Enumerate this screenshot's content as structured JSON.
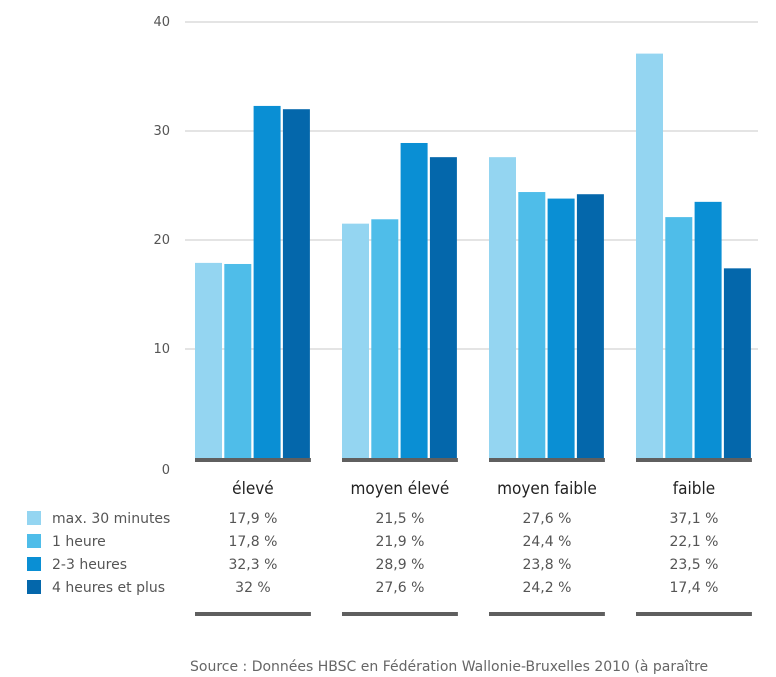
{
  "chart_data": {
    "type": "bar",
    "categories": [
      "élevé",
      "moyen élevé",
      "moyen faible",
      "faible"
    ],
    "series": [
      {
        "name": "max. 30 minutes",
        "values": [
          17.9,
          21.5,
          27.6,
          37.1
        ],
        "labels": [
          "17,9 %",
          "21,5 %",
          "27,6 %",
          "37,1 %"
        ],
        "color": "#94d5f1"
      },
      {
        "name": "1 heure",
        "values": [
          17.8,
          21.9,
          24.4,
          22.1
        ],
        "labels": [
          "17,8 %",
          "21,9 %",
          "24,4 %",
          "22,1 %"
        ],
        "color": "#4fbde9"
      },
      {
        "name": "2-3 heures",
        "values": [
          32.3,
          28.9,
          23.8,
          23.5
        ],
        "labels": [
          "32,3 %",
          "28,9 %",
          "23,8 %",
          "23,5 %"
        ],
        "color": "#0a8fd4"
      },
      {
        "name": "4 heures et plus",
        "values": [
          32,
          27.6,
          24.2,
          17.4
        ],
        "labels": [
          "32 %",
          "27,6 %",
          "24,2 %",
          "17,4 %"
        ],
        "color": "#0467ab"
      }
    ],
    "yticks": [
      "0",
      "10",
      "20",
      "30",
      "40"
    ],
    "ylim": [
      0,
      40
    ],
    "grid": true,
    "legend_placement": "bottom-left, as table rows",
    "source": "Source : Données HBSC en Fédération Wallonie-Bruxelles 2010 (à paraître"
  },
  "colors": {
    "grid": "#c8c8c8",
    "category_bar": "#5f5f5f"
  }
}
